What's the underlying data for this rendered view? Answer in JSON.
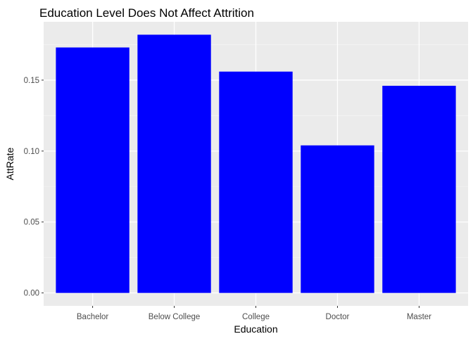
{
  "chart_data": {
    "type": "bar",
    "title": "Education Level Does Not Affect Attrition",
    "xlabel": "Education",
    "ylabel": "AttRate",
    "categories": [
      "Bachelor",
      "Below College",
      "College",
      "Doctor",
      "Master"
    ],
    "values": [
      0.173,
      0.182,
      0.156,
      0.104,
      0.146
    ],
    "ylim": [
      -0.0091,
      0.1911
    ],
    "yticks": [
      0.0,
      0.05,
      0.1,
      0.15
    ],
    "ytick_labels": [
      "0.00",
      "0.05",
      "0.10",
      "0.15"
    ],
    "grid": true,
    "legend": "none"
  },
  "colors": {
    "bar": "#0000FF",
    "panel_background": "#EBEBEB",
    "grid_major": "#FFFFFF",
    "grid_minor": "#F4F4F4",
    "tick_text": "#4D4D4D",
    "title_text": "#000000"
  }
}
